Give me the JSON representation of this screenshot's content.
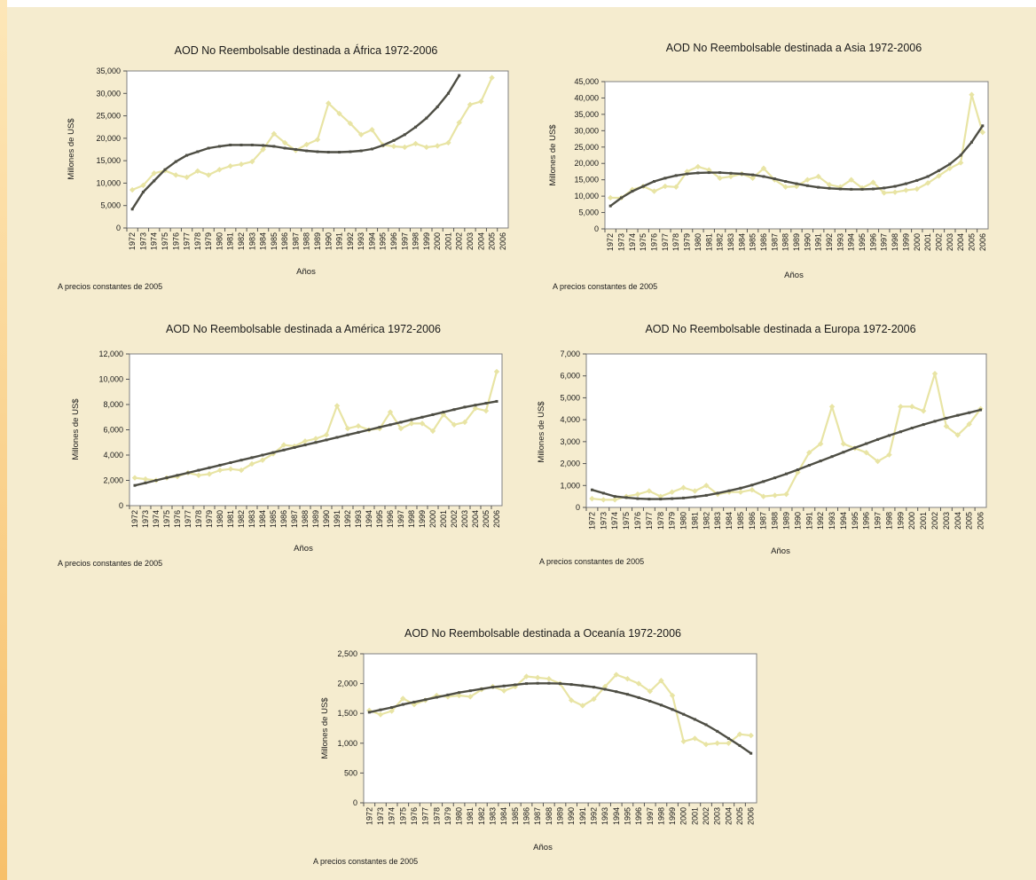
{
  "chart_data": [
    {
      "type": "line",
      "title": "AOD No Reembolsable destinada a África 1972-2006",
      "xlabel": "Años",
      "ylabel": "Millones de US$",
      "note": "A precios constantes de 2005",
      "ylim": [
        0,
        35000
      ],
      "yticks": [
        "0",
        "5,000",
        "10,000",
        "15,000",
        "20,000",
        "25,000",
        "30,000",
        "35,000"
      ],
      "categories": [
        "1972",
        "1973",
        "1974",
        "1975",
        "1976",
        "1977",
        "1978",
        "1979",
        "1980",
        "1981",
        "1982",
        "1983",
        "1984",
        "1985",
        "1986",
        "1987",
        "1988",
        "1989",
        "1990",
        "1991",
        "1992",
        "1993",
        "1994",
        "1995",
        "1996",
        "1997",
        "1998",
        "1999",
        "2000",
        "2001",
        "2002",
        "2003",
        "2004",
        "2005",
        "2006"
      ],
      "series": [
        {
          "values": [
            8500,
            9500,
            12200,
            12800,
            11800,
            11300,
            12700,
            11800,
            13000,
            13800,
            14200,
            14800,
            17500,
            21000,
            19000,
            17300,
            18600,
            19700,
            27800,
            25500,
            23300,
            20800,
            21900,
            18500,
            18200,
            18000,
            18800,
            18000,
            18300,
            19000,
            23500,
            27500,
            28200,
            33500,
            null
          ],
          "color": "#e8e4a4",
          "marker": "diamond"
        },
        {
          "values": [
            4200,
            8000,
            10500,
            13000,
            14800,
            16200,
            17000,
            17800,
            18200,
            18500,
            18500,
            18500,
            18400,
            18200,
            17800,
            17500,
            17200,
            17000,
            16900,
            16900,
            17000,
            17200,
            17600,
            18400,
            19500,
            20800,
            22500,
            24500,
            27000,
            30000,
            34000,
            null,
            null,
            null,
            null
          ],
          "color": "#4e4e44",
          "marker": "none"
        }
      ]
    },
    {
      "type": "line",
      "title": "AOD No Reembolsable destinada a Asia 1972-2006",
      "xlabel": "Años",
      "ylabel": "Millones de US$",
      "note": "A precios constantes de 2005",
      "ylim": [
        0,
        45000
      ],
      "yticks": [
        "0",
        "5,000",
        "10,000",
        "15,000",
        "20,000",
        "25,000",
        "30,000",
        "35,000",
        "40,000",
        "45,000"
      ],
      "categories": [
        "1972",
        "1973",
        "1974",
        "1975",
        "1976",
        "1977",
        "1978",
        "1979",
        "1980",
        "1981",
        "1982",
        "1983",
        "1984",
        "1985",
        "1986",
        "1987",
        "1988",
        "1989",
        "1990",
        "1991",
        "1992",
        "1993",
        "1994",
        "1995",
        "1996",
        "1997",
        "1998",
        "1999",
        "2000",
        "2001",
        "2002",
        "2003",
        "2004",
        "2005",
        "2006"
      ],
      "series": [
        {
          "values": [
            9500,
            9500,
            12000,
            13000,
            11500,
            13000,
            12800,
            17500,
            19000,
            18000,
            15500,
            16000,
            16800,
            15500,
            18500,
            15000,
            12800,
            13000,
            15000,
            16000,
            13500,
            12800,
            15000,
            12500,
            14200,
            11000,
            11200,
            11800,
            12200,
            14000,
            16200,
            18500,
            20200,
            41000,
            29500
          ],
          "color": "#e8e4a4",
          "marker": "diamond"
        },
        {
          "values": [
            7000,
            9500,
            11500,
            13000,
            14500,
            15500,
            16300,
            16800,
            17100,
            17200,
            17200,
            17000,
            16800,
            16500,
            16000,
            15300,
            14500,
            13800,
            13200,
            12700,
            12400,
            12200,
            12100,
            12100,
            12200,
            12500,
            13000,
            13800,
            14800,
            16000,
            17800,
            19800,
            22500,
            26500,
            31500
          ],
          "color": "#4e4e44",
          "marker": "none"
        }
      ]
    },
    {
      "type": "line",
      "title": "AOD No Reembolsable destinada a América 1972-2006",
      "xlabel": "Años",
      "ylabel": "Millones de US$",
      "note": "A precios constantes de 2005",
      "ylim": [
        0,
        12000
      ],
      "yticks": [
        "0",
        "2,000",
        "4,000",
        "6,000",
        "8,000",
        "10,000",
        "12,000"
      ],
      "categories": [
        "1972",
        "1973",
        "1974",
        "1975",
        "1976",
        "1977",
        "1978",
        "1979",
        "1980",
        "1981",
        "1982",
        "1983",
        "1984",
        "1985",
        "1986",
        "1987",
        "1988",
        "1989",
        "1990",
        "1991",
        "1992",
        "1993",
        "1994",
        "1995",
        "1996",
        "1997",
        "1998",
        "1999",
        "2000",
        "2001",
        "2002",
        "2003",
        "2004",
        "2005",
        "2006"
      ],
      "series": [
        {
          "values": [
            2200,
            2100,
            2000,
            2200,
            2300,
            2600,
            2400,
            2500,
            2800,
            2900,
            2800,
            3300,
            3600,
            4100,
            4800,
            4700,
            5100,
            5300,
            5600,
            7900,
            6100,
            6300,
            6000,
            6100,
            7400,
            6100,
            6500,
            6500,
            5900,
            7200,
            6400,
            6600,
            7700,
            7500,
            10600
          ],
          "color": "#e8e4a4",
          "marker": "diamond"
        },
        {
          "values": [
            1600,
            1800,
            2000,
            2200,
            2400,
            2600,
            2800,
            3000,
            3200,
            3400,
            3600,
            3800,
            4000,
            4200,
            4400,
            4600,
            4800,
            5000,
            5200,
            5400,
            5600,
            5800,
            6000,
            6200,
            6400,
            6600,
            6800,
            7000,
            7200,
            7400,
            7600,
            7800,
            7950,
            8100,
            8250
          ],
          "color": "#4e4e44",
          "marker": "none"
        }
      ]
    },
    {
      "type": "line",
      "title": "AOD No Reembolsable destinada a Europa 1972-2006",
      "xlabel": "Años",
      "ylabel": "Millones de US$",
      "note": "A precios constantes de 2005",
      "ylim": [
        0,
        7000
      ],
      "yticks": [
        "0",
        "1,000",
        "2,000",
        "3,000",
        "4,000",
        "5,000",
        "6,000",
        "7,000"
      ],
      "categories": [
        "1972",
        "1973",
        "1974",
        "1975",
        "1976",
        "1977",
        "1978",
        "1979",
        "1980",
        "1981",
        "1982",
        "1983",
        "1984",
        "1985",
        "1986",
        "1987",
        "1988",
        "1989",
        "1990",
        "1991",
        "1992",
        "1993",
        "1994",
        "1995",
        "1996",
        "1997",
        "1998",
        "1999",
        "2000",
        "2001",
        "2002",
        "2003",
        "2004",
        "2005",
        "2006"
      ],
      "series": [
        {
          "values": [
            400,
            350,
            350,
            500,
            600,
            750,
            500,
            700,
            900,
            750,
            1000,
            600,
            700,
            700,
            800,
            500,
            550,
            600,
            1600,
            2500,
            2900,
            4600,
            2900,
            2700,
            2500,
            2100,
            2400,
            4600,
            4600,
            4400,
            6100,
            3700,
            3300,
            3800,
            4500
          ],
          "color": "#e8e4a4",
          "marker": "diamond"
        },
        {
          "values": [
            800,
            650,
            500,
            450,
            400,
            380,
            380,
            400,
            430,
            480,
            550,
            650,
            760,
            880,
            1020,
            1180,
            1350,
            1530,
            1720,
            1920,
            2120,
            2320,
            2520,
            2720,
            2910,
            3100,
            3280,
            3450,
            3620,
            3780,
            3930,
            4070,
            4200,
            4320,
            4450
          ],
          "color": "#4e4e44",
          "marker": "none"
        }
      ]
    },
    {
      "type": "line",
      "title": "AOD No Reembolsable destinada a Oceanía 1972-2006",
      "xlabel": "Años",
      "ylabel": "Millones de US$",
      "note": "A precios constantes de 2005",
      "ylim": [
        0,
        2500
      ],
      "yticks": [
        "0",
        "500",
        "1,000",
        "1,500",
        "2,000",
        "2,500"
      ],
      "categories": [
        "1972",
        "1973",
        "1974",
        "1975",
        "1976",
        "1977",
        "1978",
        "1979",
        "1980",
        "1981",
        "1982",
        "1983",
        "1984",
        "1985",
        "1986",
        "1987",
        "1988",
        "1989",
        "1990",
        "1991",
        "1992",
        "1993",
        "1994",
        "1995",
        "1996",
        "1997",
        "1998",
        "1999",
        "2000",
        "2001",
        "2002",
        "2003",
        "2004",
        "2005",
        "2006"
      ],
      "series": [
        {
          "values": [
            1550,
            1480,
            1540,
            1750,
            1650,
            1720,
            1800,
            1780,
            1800,
            1780,
            1900,
            1950,
            1880,
            1950,
            2120,
            2100,
            2080,
            2000,
            1720,
            1630,
            1740,
            1950,
            2150,
            2080,
            2000,
            1870,
            2050,
            1800,
            1030,
            1080,
            980,
            1000,
            1000,
            1150,
            1130
          ],
          "color": "#e8e4a4",
          "marker": "diamond"
        },
        {
          "values": [
            1520,
            1560,
            1600,
            1650,
            1690,
            1730,
            1770,
            1810,
            1850,
            1880,
            1910,
            1940,
            1960,
            1980,
            2000,
            2005,
            2005,
            2000,
            1985,
            1965,
            1940,
            1905,
            1865,
            1820,
            1765,
            1705,
            1640,
            1565,
            1485,
            1400,
            1310,
            1200,
            1080,
            960,
            830
          ],
          "color": "#4e4e44",
          "marker": "none"
        }
      ]
    }
  ]
}
